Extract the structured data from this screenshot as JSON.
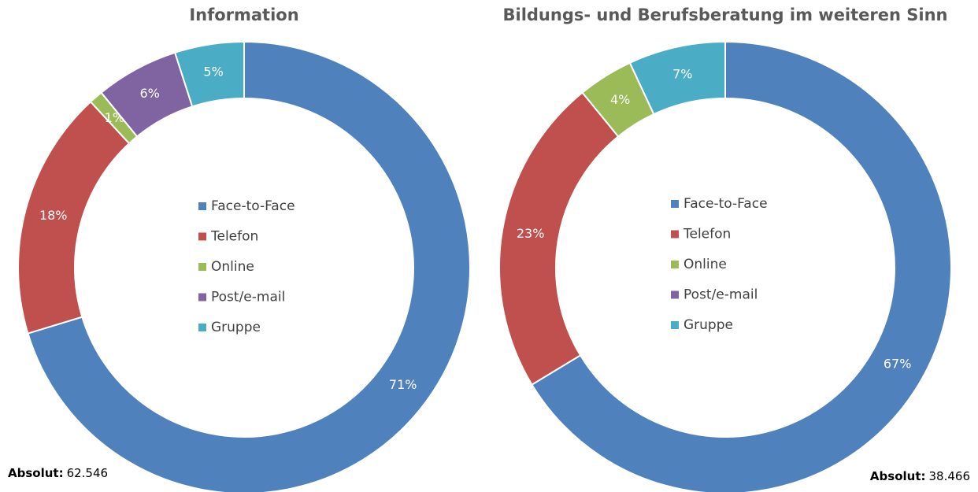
{
  "chart_data": [
    {
      "type": "donut",
      "title": "Information",
      "categories": [
        "Face-to-Face",
        "Telefon",
        "Online",
        "Post/e-mail",
        "Gruppe"
      ],
      "values": [
        71,
        18,
        1,
        6,
        5
      ],
      "value_labels": [
        "71%",
        "18%",
        "1%",
        "6%",
        "5%"
      ],
      "colors": [
        "#4f81bd",
        "#c0504d",
        "#9bbb59",
        "#8064a2",
        "#4bacc6"
      ],
      "absolute_label": "Absolut:",
      "absolute_value": "62.546"
    },
    {
      "type": "donut",
      "title": "Bildungs- und Berufsberatung im weiteren Sinn",
      "categories": [
        "Face-to-Face",
        "Telefon",
        "Online",
        "Post/e-mail",
        "Gruppe"
      ],
      "values": [
        67,
        23,
        4,
        0,
        7
      ],
      "value_labels": [
        "67%",
        "23%",
        "4%",
        null,
        "7%"
      ],
      "colors": [
        "#4f81bd",
        "#c0504d",
        "#9bbb59",
        "#8064a2",
        "#4bacc6"
      ],
      "absolute_label": "Absolut:",
      "absolute_value": "38.466"
    }
  ]
}
